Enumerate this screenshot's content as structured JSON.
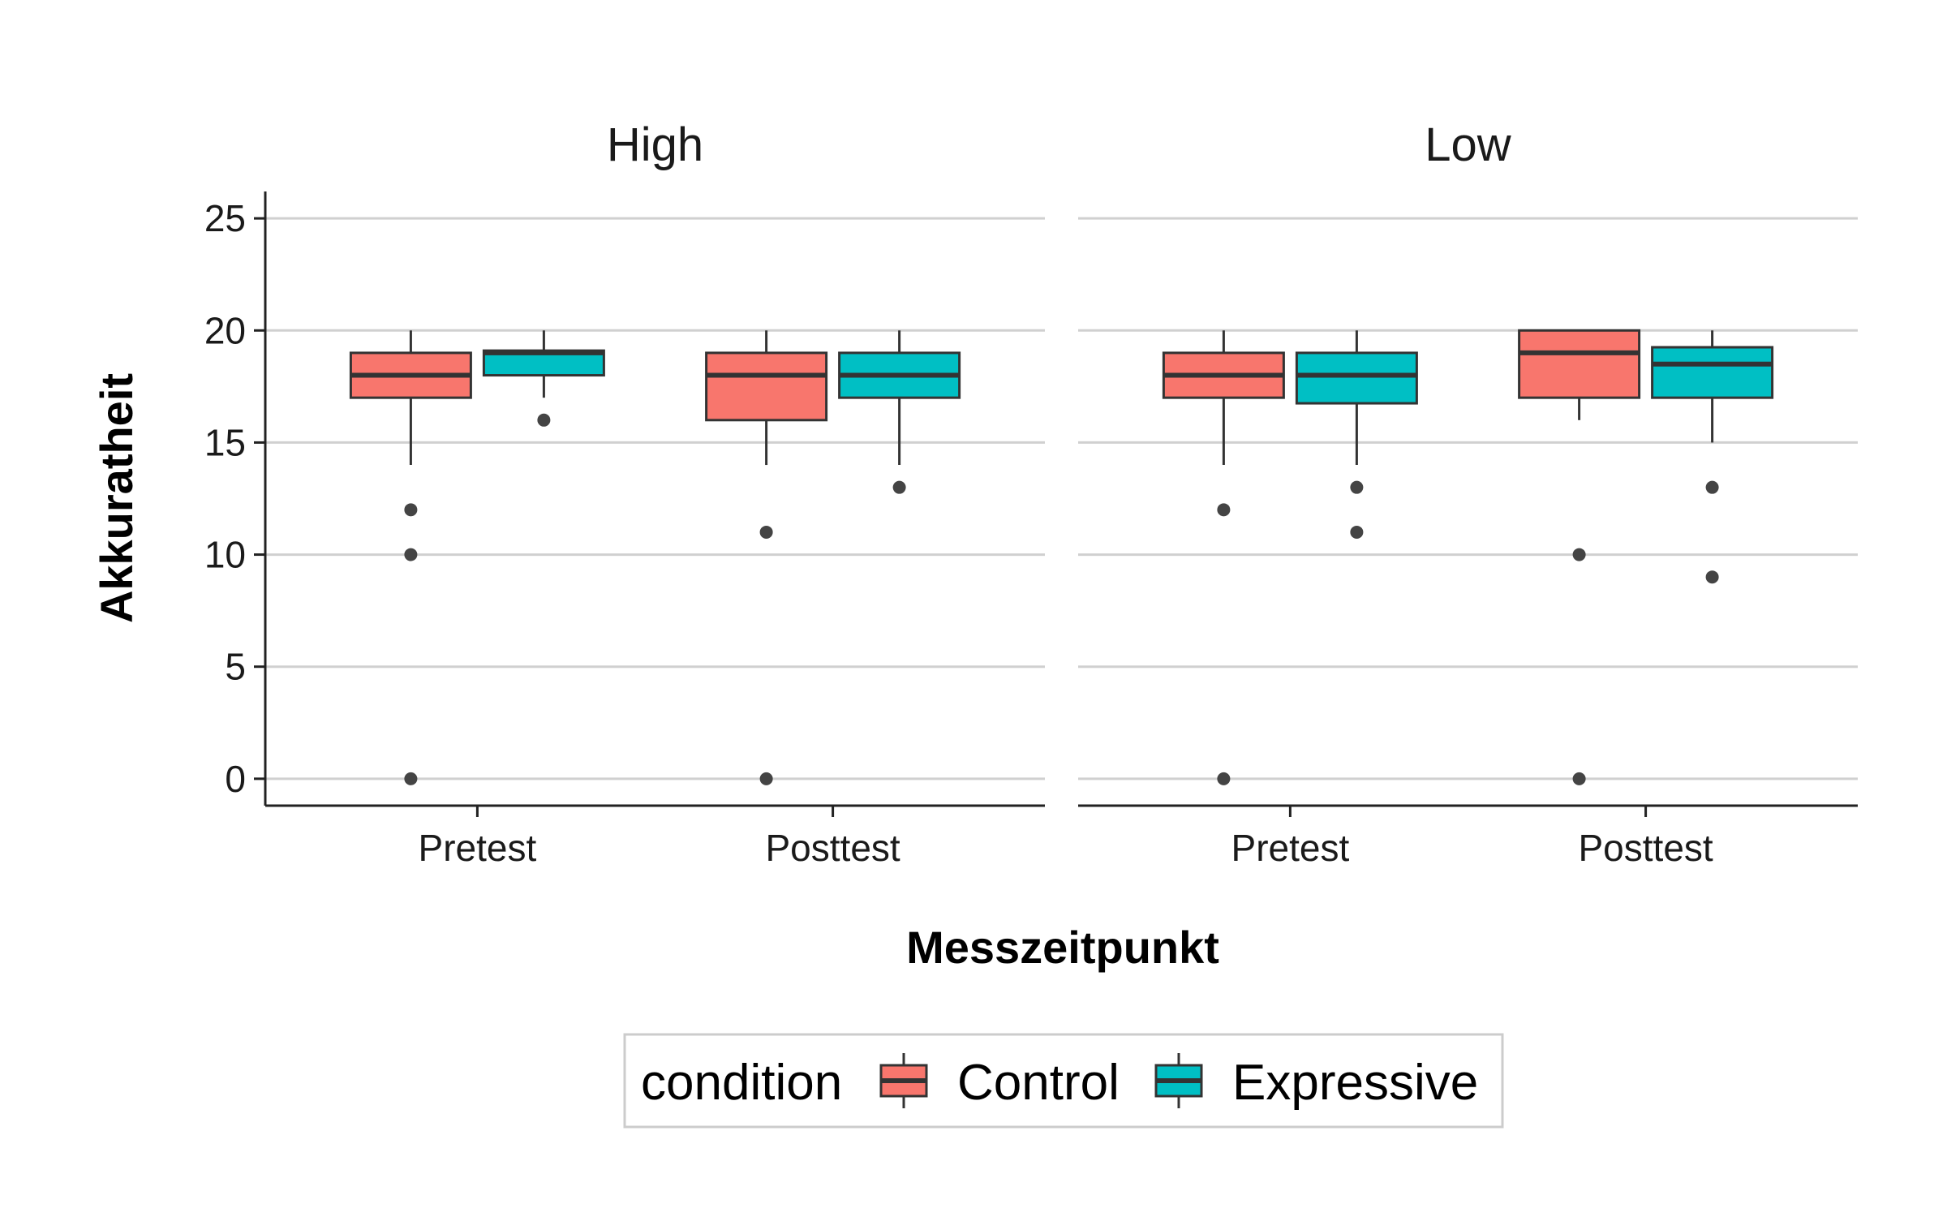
{
  "chart_data": {
    "type": "boxplot",
    "xlabel": "Messzeitpunkt",
    "ylabel": "Akkuratheit",
    "ylim": [
      -1.2,
      26.2
    ],
    "yticks": [
      0,
      5,
      10,
      15,
      20,
      25
    ],
    "ytick_labels": [
      "0",
      "5",
      "10",
      "15",
      "20",
      "25"
    ],
    "categories": [
      "Pretest",
      "Posttest"
    ],
    "legend": {
      "title": "condition",
      "position": "bottom",
      "entries": [
        {
          "name": "Control",
          "color": "#F8766D"
        },
        {
          "name": "Expressive",
          "color": "#00BFC4"
        }
      ]
    },
    "grid": "horizontal major",
    "facets": [
      {
        "label": "High",
        "groups": [
          {
            "category": "Pretest",
            "condition": "Control",
            "whisker_low": 14,
            "q1": 17,
            "median": 18,
            "q3": 19,
            "whisker_high": 20,
            "outliers": [
              12,
              10,
              0
            ]
          },
          {
            "category": "Pretest",
            "condition": "Expressive",
            "whisker_low": 17,
            "q1": 18,
            "median": 19,
            "q3": 19.1,
            "whisker_high": 20,
            "outliers": [
              16
            ]
          },
          {
            "category": "Posttest",
            "condition": "Control",
            "whisker_low": 14,
            "q1": 16,
            "median": 18,
            "q3": 19,
            "whisker_high": 20,
            "outliers": [
              11,
              0
            ]
          },
          {
            "category": "Posttest",
            "condition": "Expressive",
            "whisker_low": 14,
            "q1": 17,
            "median": 18,
            "q3": 19,
            "whisker_high": 20,
            "outliers": [
              13
            ]
          }
        ]
      },
      {
        "label": "Low",
        "groups": [
          {
            "category": "Pretest",
            "condition": "Control",
            "whisker_low": 14,
            "q1": 17,
            "median": 18,
            "q3": 19,
            "whisker_high": 20,
            "outliers": [
              12,
              0
            ]
          },
          {
            "category": "Pretest",
            "condition": "Expressive",
            "whisker_low": 14,
            "q1": 16.75,
            "median": 18,
            "q3": 19,
            "whisker_high": 20,
            "outliers": [
              13,
              11
            ]
          },
          {
            "category": "Posttest",
            "condition": "Control",
            "whisker_low": 16,
            "q1": 17,
            "median": 19,
            "q3": 20,
            "whisker_high": 20,
            "outliers": [
              10,
              0
            ]
          },
          {
            "category": "Posttest",
            "condition": "Expressive",
            "whisker_low": 15,
            "q1": 17,
            "median": 18.5,
            "q3": 19.25,
            "whisker_high": 20,
            "outliers": [
              13,
              9
            ]
          }
        ]
      }
    ]
  }
}
